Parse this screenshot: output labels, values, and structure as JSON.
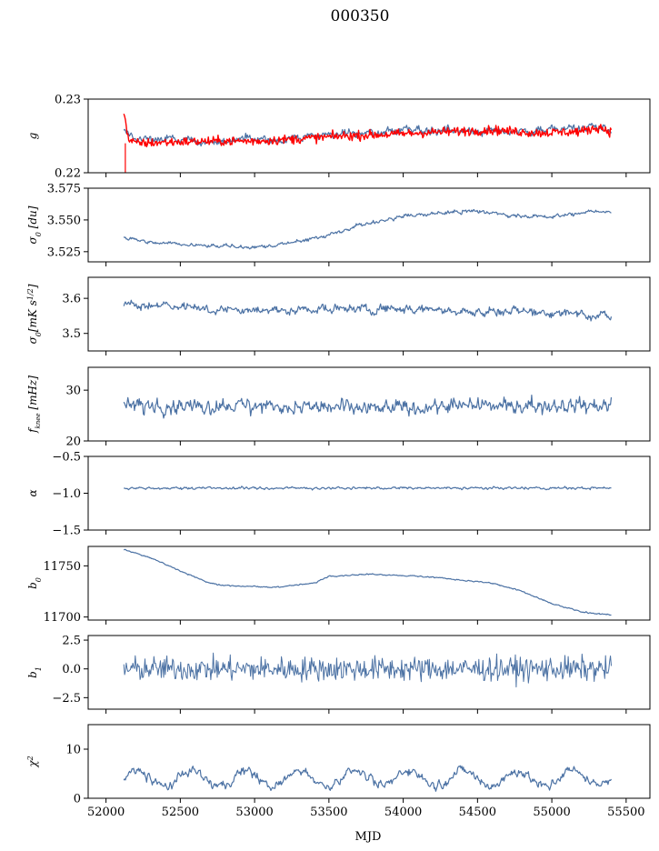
{
  "chart_data": {
    "title": "000350",
    "type": "line",
    "xlabel": "MJD",
    "xlim": [
      51880,
      55660
    ],
    "xticks": [
      52000,
      52500,
      53000,
      53500,
      54000,
      54500,
      55000,
      55500
    ],
    "x_range_data": [
      52120,
      55400
    ],
    "colors": {
      "main": "#4c72a4",
      "overlay": "#ff0000"
    },
    "panels": [
      {
        "ylabel_html": "g",
        "ylim": [
          0.22,
          0.23
        ],
        "yticks": [
          0.22,
          0.23
        ],
        "ytick_labels": [
          "0.22",
          "0.23"
        ],
        "series": [
          {
            "color": "#4c72a4",
            "lw": 1.2,
            "noise": 0.0009,
            "smooth": 4,
            "points": [
              [
                52120,
                0.2255
              ],
              [
                52200,
                0.2245
              ],
              [
                52400,
                0.2245
              ],
              [
                52700,
                0.2242
              ],
              [
                53000,
                0.2245
              ],
              [
                53300,
                0.2248
              ],
              [
                53600,
                0.2253
              ],
              [
                54000,
                0.2258
              ],
              [
                54300,
                0.2258
              ],
              [
                54600,
                0.2256
              ],
              [
                55000,
                0.2258
              ],
              [
                55300,
                0.2262
              ],
              [
                55400,
                0.2255
              ]
            ]
          },
          {
            "color": "#ff0000",
            "lw": 1.4,
            "noise": 0.00045,
            "smooth": 0,
            "points": [
              [
                52120,
                0.2285
              ],
              [
                52150,
                0.2245
              ],
              [
                52200,
                0.224
              ],
              [
                52500,
                0.2242
              ],
              [
                52800,
                0.2243
              ],
              [
                53000,
                0.2243
              ],
              [
                53300,
                0.2246
              ],
              [
                53600,
                0.225
              ],
              [
                53900,
                0.2252
              ],
              [
                54200,
                0.2255
              ],
              [
                54600,
                0.2258
              ],
              [
                54900,
                0.2254
              ],
              [
                55200,
                0.2256
              ],
              [
                55320,
                0.2262
              ],
              [
                55400,
                0.2255
              ]
            ]
          }
        ]
      },
      {
        "ylabel_html": "σ<tspan font-size='8' baseline-shift='sub'>0</tspan> [du]",
        "ylim": [
          3.517,
          3.575
        ],
        "yticks": [
          3.525,
          3.55,
          3.575
        ],
        "ytick_labels": [
          "3.525",
          "3.550",
          "3.575"
        ],
        "series": [
          {
            "color": "#4c72a4",
            "lw": 1.2,
            "noise": 0.0022,
            "smooth": 2,
            "points": [
              [
                52120,
                3.536
              ],
              [
                52300,
                3.532
              ],
              [
                52600,
                3.53
              ],
              [
                52800,
                3.529
              ],
              [
                53100,
                3.529
              ],
              [
                53300,
                3.533
              ],
              [
                53500,
                3.538
              ],
              [
                53700,
                3.546
              ],
              [
                54000,
                3.553
              ],
              [
                54300,
                3.556
              ],
              [
                54500,
                3.557
              ],
              [
                54700,
                3.554
              ],
              [
                55000,
                3.552
              ],
              [
                55200,
                3.556
              ],
              [
                55400,
                3.557
              ]
            ]
          }
        ]
      },
      {
        "ylabel_html": "σ<tspan font-size='8' baseline-shift='sub'>0</tspan>[mK s<tspan font-size='8' baseline-shift='super'>1/2</tspan>]",
        "ylim": [
          3.45,
          3.66
        ],
        "yticks": [
          3.5,
          3.6
        ],
        "ytick_labels": [
          "3.5",
          "3.6"
        ],
        "series": [
          {
            "color": "#4c72a4",
            "lw": 1.2,
            "noise": 0.018,
            "smooth": 3,
            "points": [
              [
                52120,
                3.585
              ],
              [
                52400,
                3.58
              ],
              [
                52800,
                3.565
              ],
              [
                53200,
                3.565
              ],
              [
                53600,
                3.57
              ],
              [
                54000,
                3.57
              ],
              [
                54400,
                3.565
              ],
              [
                54800,
                3.56
              ],
              [
                55200,
                3.56
              ],
              [
                55400,
                3.545
              ]
            ]
          }
        ]
      },
      {
        "ylabel_html": "f<tspan font-size='7' baseline-shift='sub'>knee</tspan> [mHz]",
        "ylim": [
          20,
          34.5
        ],
        "yticks": [
          20,
          30
        ],
        "ytick_labels": [
          "20",
          "30"
        ],
        "series": [
          {
            "color": "#4c72a4",
            "lw": 1.2,
            "noise": 1.6,
            "smooth": 1,
            "points": [
              [
                52120,
                27
              ],
              [
                52500,
                27
              ],
              [
                53000,
                27
              ],
              [
                53500,
                26.5
              ],
              [
                54000,
                26.5
              ],
              [
                54500,
                27
              ],
              [
                55000,
                27
              ],
              [
                55400,
                27
              ]
            ]
          }
        ]
      },
      {
        "ylabel_html": "α",
        "ylim": [
          -1.5,
          -0.5
        ],
        "yticks": [
          -1.5,
          -1.0,
          -0.5
        ],
        "ytick_labels": [
          "−1.5",
          "−1.0",
          "−0.5"
        ],
        "series": [
          {
            "color": "#4c72a4",
            "lw": 1.2,
            "noise": 0.018,
            "smooth": 1,
            "points": [
              [
                52120,
                -0.93
              ],
              [
                52800,
                -0.93
              ],
              [
                53500,
                -0.93
              ],
              [
                54200,
                -0.93
              ],
              [
                54900,
                -0.93
              ],
              [
                55400,
                -0.93
              ]
            ]
          }
        ]
      },
      {
        "ylabel_html": "b<tspan font-size='8' baseline-shift='sub'>0</tspan>",
        "ylim": [
          11697,
          11769
        ],
        "yticks": [
          11700,
          11750
        ],
        "ytick_labels": [
          "11700",
          "11750"
        ],
        "series": [
          {
            "color": "#4c72a4",
            "lw": 1.2,
            "noise": 0.7,
            "smooth": 1,
            "points": [
              [
                52120,
                11766
              ],
              [
                52300,
                11758
              ],
              [
                52500,
                11745
              ],
              [
                52700,
                11733
              ],
              [
                52800,
                11731
              ],
              [
                53100,
                11729
              ],
              [
                53200,
                11730
              ],
              [
                53400,
                11733
              ],
              [
                53500,
                11740
              ],
              [
                53800,
                11742
              ],
              [
                54200,
                11739
              ],
              [
                54600,
                11733
              ],
              [
                54800,
                11725
              ],
              [
                55000,
                11713
              ],
              [
                55200,
                11705
              ],
              [
                55400,
                11702
              ]
            ]
          }
        ]
      },
      {
        "ylabel_html": "b<tspan font-size='8' baseline-shift='sub'>1</tspan>",
        "ylim": [
          -3.5,
          2.9
        ],
        "yticks": [
          -2.5,
          0.0,
          2.5
        ],
        "ytick_labels": [
          "−2.5",
          "0.0",
          "2.5"
        ],
        "series": [
          {
            "color": "#4c72a4",
            "lw": 1.0,
            "noise": 0.75,
            "smooth": 0,
            "points": [
              [
                52120,
                0
              ],
              [
                53000,
                0
              ],
              [
                54000,
                0
              ],
              [
                55000,
                0
              ],
              [
                55400,
                0
              ]
            ]
          }
        ]
      },
      {
        "ylabel_html": "χ<tspan font-size='8' baseline-shift='super'>2</tspan>",
        "ylim": [
          0,
          15
        ],
        "yticks": [
          0,
          10
        ],
        "ytick_labels": [
          "0",
          "10"
        ],
        "series": [
          {
            "color": "#4c72a4",
            "lw": 1.2,
            "noise": 1.0,
            "smooth": 1,
            "wave": 1.6,
            "period": 365,
            "points": [
              [
                52120,
                4
              ],
              [
                53000,
                4
              ],
              [
                54000,
                4.2
              ],
              [
                55000,
                4
              ],
              [
                55400,
                4.5
              ]
            ]
          }
        ]
      }
    ]
  }
}
